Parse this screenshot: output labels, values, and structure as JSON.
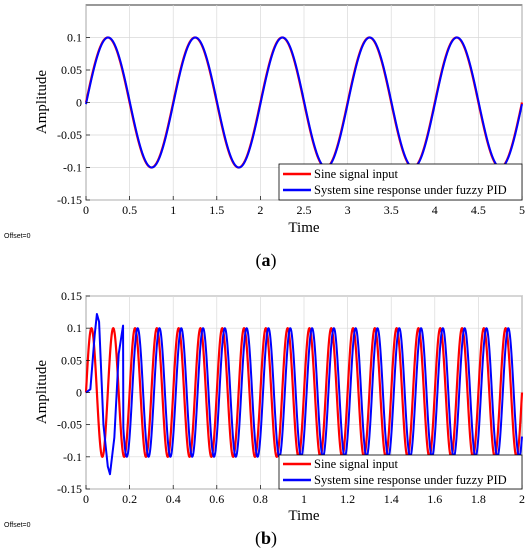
{
  "chart_data": [
    {
      "type": "line",
      "xlabel": "Time",
      "ylabel": "Amplitude",
      "xlim": [
        0,
        5
      ],
      "ylim": [
        -0.15,
        0.15
      ],
      "x_ticks": [
        "0",
        "0.5",
        "1",
        "1.5",
        "2",
        "2.5",
        "3",
        "3.5",
        "4",
        "4.5",
        "5"
      ],
      "y_ticks": [
        "-0.15",
        "-0.1",
        "-0.05",
        "0",
        "0.05",
        "0.1"
      ],
      "grid": true,
      "legend_position": "bottom-right",
      "offset_text": "Offset=0",
      "caption_prefix": "(",
      "caption_letter": "a",
      "caption_suffix": ")",
      "series": [
        {
          "name": "Sine signal input",
          "color": "#ff0000",
          "amplitude": 0.1,
          "frequency_hz": 1,
          "phase_delay": 0,
          "x_start": 0,
          "x_end": 5
        },
        {
          "name": "System sine response under fuzzy PID",
          "color": "#0000ff",
          "amplitude": 0.1,
          "frequency_hz": 1,
          "phase_delay": 0.004,
          "x_start": 0,
          "x_end": 5
        }
      ]
    },
    {
      "type": "line",
      "xlabel": "Time",
      "ylabel": "Amplitude",
      "xlim": [
        0,
        2
      ],
      "ylim": [
        -0.15,
        0.15
      ],
      "x_ticks": [
        "0",
        "0.2",
        "0.4",
        "0.6",
        "0.8",
        "1",
        "1.2",
        "1.4",
        "1.6",
        "1.8",
        "2"
      ],
      "y_ticks": [
        "-0.15",
        "-0.1",
        "-0.05",
        "0",
        "0.05",
        "0.1",
        "0.15"
      ],
      "grid": true,
      "legend_position": "bottom-right",
      "offset_text": "Offset=0",
      "caption_prefix": "(",
      "caption_letter": "b",
      "caption_suffix": ")",
      "series": [
        {
          "name": "Sine signal input",
          "color": "#ff0000",
          "amplitude": 0.1,
          "frequency_hz": 10,
          "phase_delay": 0,
          "x_start": 0,
          "x_end": 2
        },
        {
          "name": "System sine response under fuzzy PID",
          "color": "#0000ff",
          "amplitude": 0.1,
          "frequency_hz": 10,
          "phase_delay": 0.012,
          "x_start": 0,
          "x_end": 2,
          "transient": [
            [
              0,
              0
            ],
            [
              0.02,
              0.005
            ],
            [
              0.04,
              0.09
            ],
            [
              0.05,
              0.122
            ],
            [
              0.06,
              0.11
            ],
            [
              0.08,
              -0.05
            ],
            [
              0.1,
              -0.115
            ],
            [
              0.11,
              -0.127
            ],
            [
              0.13,
              -0.07
            ],
            [
              0.15,
              0.06
            ],
            [
              0.17,
              0.104
            ]
          ]
        }
      ]
    }
  ]
}
